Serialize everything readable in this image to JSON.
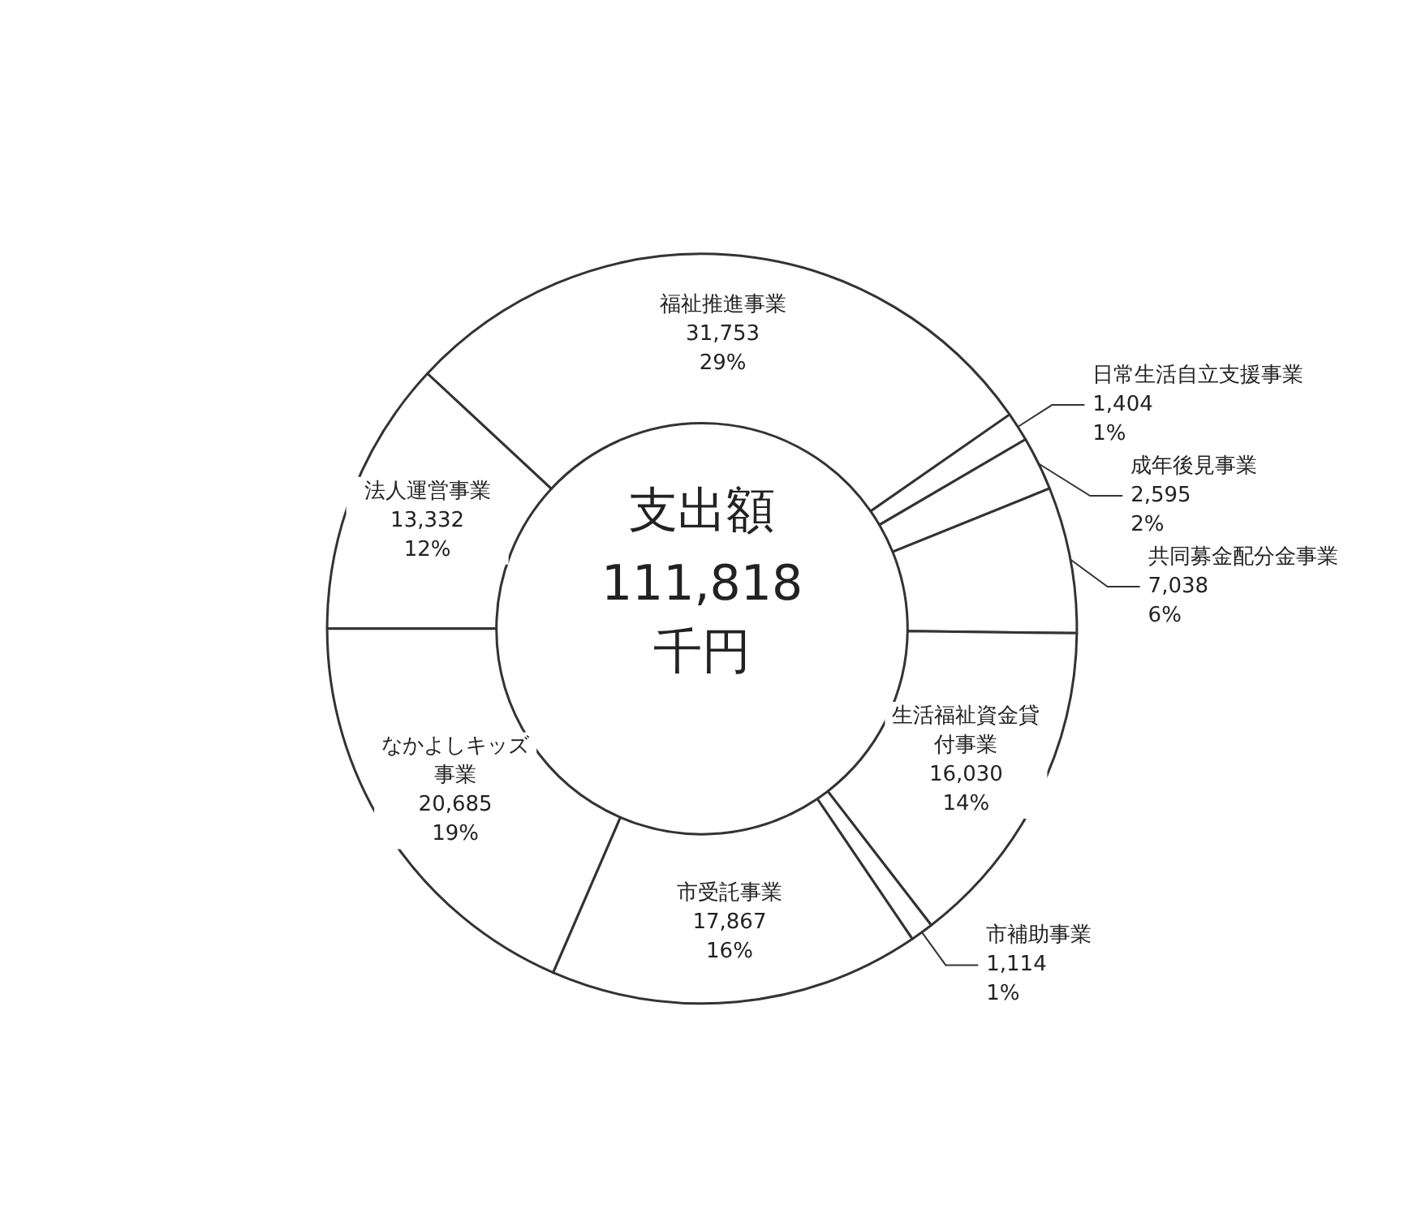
{
  "chart_data": {
    "type": "donut",
    "title": "支出額",
    "subtitle": "111,818 千円",
    "categories": [
      "法人運営事業",
      "福祉推進事業",
      "日常生活自立支援事業",
      "成年後見事業",
      "共同募金配分金事業",
      "生活福祉資金貸付事業",
      "市補助事業",
      "市受託事業",
      "なかよしキッズ事業"
    ],
    "values": [
      13332,
      31753,
      1404,
      2595,
      7038,
      16030,
      1114,
      17867,
      20685
    ],
    "value_labels": [
      "13,332\n12%",
      "31,753\n29%",
      "1,404\n1%",
      "2,595\n2%",
      "7,038\n6%",
      "16,030\n14%",
      "1,114\n1%",
      "17,867\n16%",
      "20,685\n19%"
    ],
    "colors": [
      "#ffffff",
      "#ffffff",
      "#ffffff",
      "#ffffff",
      "#ffffff",
      "#ffffff",
      "#ffffff",
      "#ffffff",
      "#ffffff"
    ],
    "legend": false
  }
}
